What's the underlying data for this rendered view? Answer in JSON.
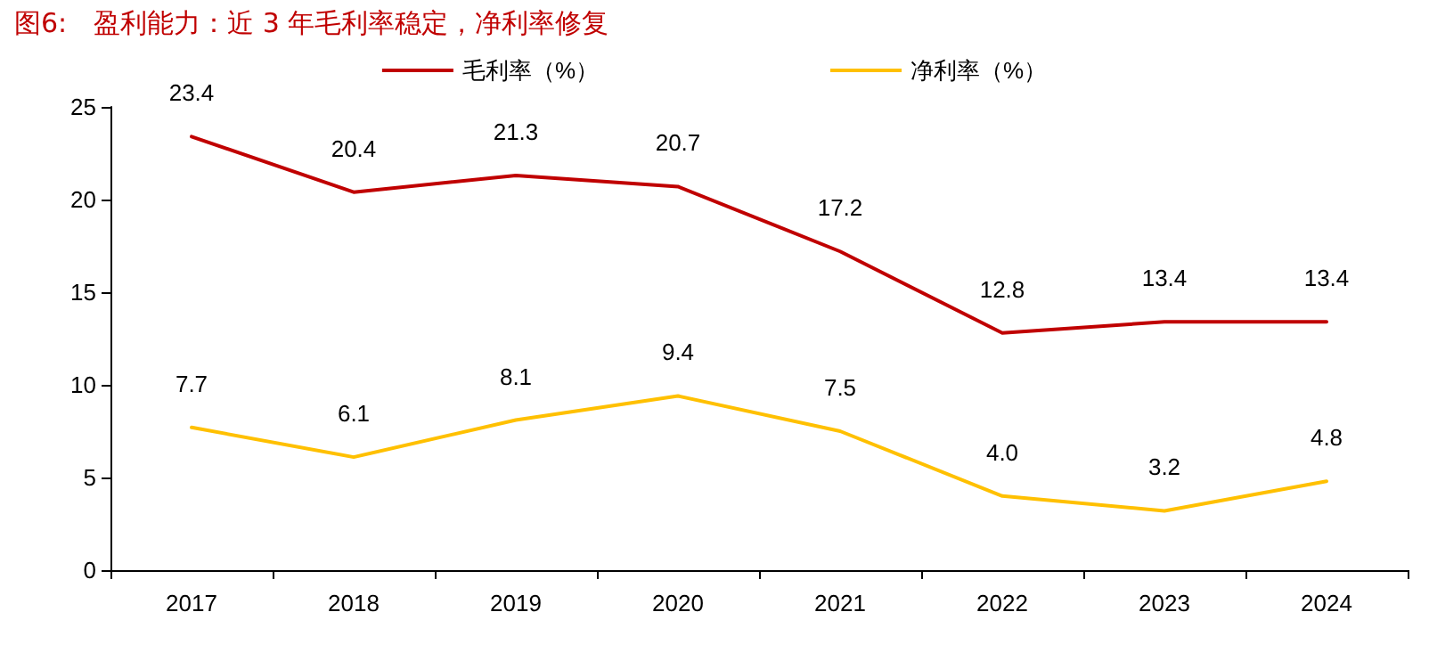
{
  "chart_data": {
    "type": "line",
    "title": "图6:　盈利能力：近 3 年毛利率稳定，净利率修复",
    "categories": [
      "2017",
      "2018",
      "2019",
      "2020",
      "2021",
      "2022",
      "2023",
      "2024"
    ],
    "series": [
      {
        "name": "毛利率（%）",
        "color": "#c00000",
        "values": [
          23.4,
          20.4,
          21.3,
          20.7,
          17.2,
          12.8,
          13.4,
          13.4
        ],
        "value_labels": [
          "23.4",
          "20.4",
          "21.3",
          "20.7",
          "17.2",
          "12.8",
          "13.4",
          "13.4"
        ]
      },
      {
        "name": "净利率（%）",
        "color": "#ffc000",
        "values": [
          7.7,
          6.1,
          8.1,
          9.4,
          7.5,
          4.0,
          3.2,
          4.8
        ],
        "value_labels": [
          "7.7",
          "6.1",
          "8.1",
          "9.4",
          "7.5",
          "4.0",
          "3.2",
          "4.8"
        ]
      }
    ],
    "ylim": [
      0,
      25
    ],
    "yticks": [
      0,
      5,
      10,
      15,
      20,
      25
    ],
    "grid": false,
    "legend": "top",
    "marker": "none",
    "line_style": "solid"
  }
}
